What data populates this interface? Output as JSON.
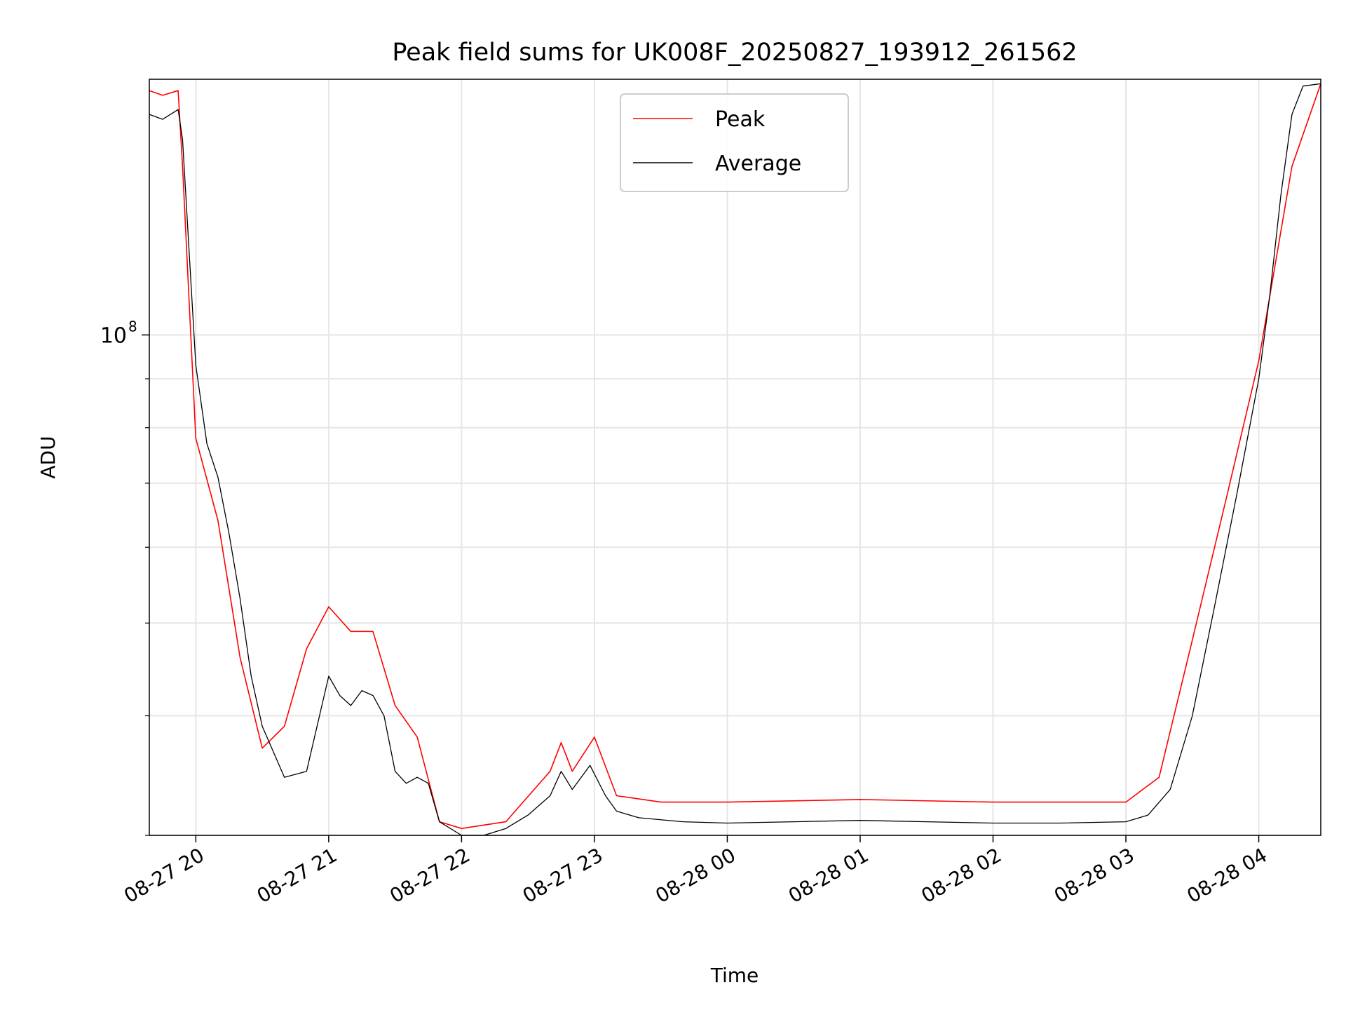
{
  "chart_data": {
    "type": "line",
    "title": "Peak field sums for UK008F_20250827_193912_261562",
    "xlabel": "Time",
    "ylabel": "ADU",
    "yscale": "log",
    "grid": true,
    "legend": "upper center",
    "x_range": [
      "2025-08-27 19:39",
      "2025-08-28 04:28"
    ],
    "ylim": [
      30000000,
      185000000
    ],
    "x_ticks": [
      "08-27 20",
      "08-27 21",
      "08-27 22",
      "08-27 23",
      "08-28 00",
      "08-28 01",
      "08-28 02",
      "08-28 03",
      "08-28 04"
    ],
    "x_tick_times": [
      "2025-08-27 20:00",
      "2025-08-27 21:00",
      "2025-08-27 22:00",
      "2025-08-27 23:00",
      "2025-08-28 00:00",
      "2025-08-28 01:00",
      "2025-08-28 02:00",
      "2025-08-28 03:00",
      "2025-08-28 04:00"
    ],
    "y_tick_labels": [
      {
        "base": "10",
        "exp": "8",
        "value": 100000000
      }
    ],
    "y_minor_ticks": [
      30000000,
      40000000,
      50000000,
      60000000,
      70000000,
      80000000,
      90000000
    ],
    "series": [
      {
        "name": "Peak",
        "color": "#ff0000",
        "x": [
          "2025-08-27 19:39",
          "2025-08-27 19:45",
          "2025-08-27 19:52",
          "2025-08-27 19:54",
          "2025-08-27 20:00",
          "2025-08-27 20:10",
          "2025-08-27 20:20",
          "2025-08-27 20:30",
          "2025-08-27 20:40",
          "2025-08-27 20:50",
          "2025-08-27 21:00",
          "2025-08-27 21:10",
          "2025-08-27 21:20",
          "2025-08-27 21:30",
          "2025-08-27 21:40",
          "2025-08-27 21:50",
          "2025-08-27 22:00",
          "2025-08-27 22:20",
          "2025-08-27 22:40",
          "2025-08-27 22:45",
          "2025-08-27 22:50",
          "2025-08-27 23:00",
          "2025-08-27 23:10",
          "2025-08-27 23:30",
          "2025-08-28 00:00",
          "2025-08-28 01:00",
          "2025-08-28 02:00",
          "2025-08-28 02:40",
          "2025-08-28 03:00",
          "2025-08-28 03:15",
          "2025-08-28 03:30",
          "2025-08-28 03:45",
          "2025-08-28 04:00",
          "2025-08-28 04:15",
          "2025-08-28 04:28"
        ],
        "values": [
          180000000,
          178000000,
          180000000,
          150000000,
          78000000,
          64000000,
          46000000,
          37000000,
          39000000,
          47000000,
          52000000,
          49000000,
          49000000,
          41000000,
          38000000,
          31000000,
          30500000,
          31000000,
          35000000,
          37500000,
          35000000,
          38000000,
          33000000,
          32500000,
          32500000,
          32700000,
          32500000,
          32500000,
          32500000,
          34500000,
          48000000,
          67000000,
          94000000,
          150000000,
          183000000
        ]
      },
      {
        "name": "Average",
        "color": "#000000",
        "x": [
          "2025-08-27 19:39",
          "2025-08-27 19:45",
          "2025-08-27 19:52",
          "2025-08-27 19:54",
          "2025-08-27 20:00",
          "2025-08-27 20:05",
          "2025-08-27 20:10",
          "2025-08-27 20:15",
          "2025-08-27 20:20",
          "2025-08-27 20:25",
          "2025-08-27 20:30",
          "2025-08-27 20:40",
          "2025-08-27 20:50",
          "2025-08-27 21:00",
          "2025-08-27 21:05",
          "2025-08-27 21:10",
          "2025-08-27 21:15",
          "2025-08-27 21:20",
          "2025-08-27 21:25",
          "2025-08-27 21:30",
          "2025-08-27 21:35",
          "2025-08-27 21:40",
          "2025-08-27 21:45",
          "2025-08-27 21:50",
          "2025-08-27 22:00",
          "2025-08-27 22:10",
          "2025-08-27 22:20",
          "2025-08-27 22:30",
          "2025-08-27 22:40",
          "2025-08-27 22:45",
          "2025-08-27 22:50",
          "2025-08-27 22:58",
          "2025-08-27 23:05",
          "2025-08-27 23:10",
          "2025-08-27 23:20",
          "2025-08-27 23:40",
          "2025-08-28 00:00",
          "2025-08-28 00:30",
          "2025-08-28 01:00",
          "2025-08-28 01:30",
          "2025-08-28 02:00",
          "2025-08-28 02:30",
          "2025-08-28 03:00",
          "2025-08-28 03:10",
          "2025-08-28 03:20",
          "2025-08-28 03:30",
          "2025-08-28 03:40",
          "2025-08-28 03:50",
          "2025-08-28 04:00",
          "2025-08-28 04:05",
          "2025-08-28 04:10",
          "2025-08-28 04:15",
          "2025-08-28 04:20",
          "2025-08-28 04:28"
        ],
        "values": [
          170000000,
          168000000,
          172000000,
          160000000,
          93000000,
          77000000,
          71000000,
          62000000,
          53000000,
          44000000,
          39000000,
          34500000,
          35000000,
          44000000,
          42000000,
          41000000,
          42500000,
          42000000,
          40000000,
          35000000,
          34000000,
          34500000,
          34000000,
          31000000,
          30000000,
          30000000,
          30500000,
          31500000,
          33000000,
          35000000,
          33500000,
          35500000,
          33000000,
          31800000,
          31300000,
          31000000,
          30900000,
          31000000,
          31100000,
          31000000,
          30900000,
          30900000,
          31000000,
          31500000,
          33500000,
          40000000,
          52000000,
          68000000,
          90000000,
          110000000,
          140000000,
          170000000,
          182000000,
          183000000
        ]
      }
    ]
  }
}
